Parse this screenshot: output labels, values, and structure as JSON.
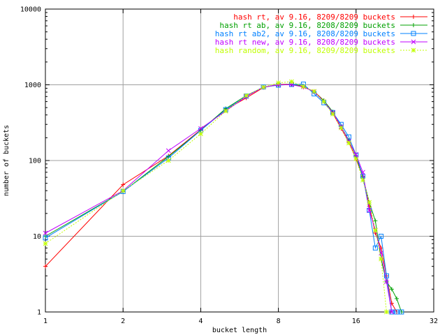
{
  "chart_data": {
    "type": "line",
    "xlabel": "bucket length",
    "ylabel": "number of buckets",
    "xscale": "log2",
    "yscale": "log10",
    "xlim": [
      1,
      32
    ],
    "ylim": [
      1,
      10000
    ],
    "xticks": [
      1,
      2,
      4,
      8,
      16,
      32
    ],
    "yticks": [
      1,
      10,
      100,
      1000,
      10000
    ],
    "grid": true,
    "legend_position": "top-right",
    "series": [
      {
        "name": "hash rt, av 9.16, 8209/8209 buckets",
        "color": "#ff0000",
        "marker": "plus",
        "dash": "solid",
        "points": [
          [
            1,
            4
          ],
          [
            2,
            48
          ],
          [
            3,
            115
          ],
          [
            4,
            255
          ],
          [
            5,
            470
          ],
          [
            6,
            670
          ],
          [
            7,
            920
          ],
          [
            8,
            1010
          ],
          [
            9,
            1020
          ],
          [
            10,
            930
          ],
          [
            11,
            820
          ],
          [
            12,
            620
          ],
          [
            13,
            420
          ],
          [
            14,
            265
          ],
          [
            15,
            175
          ],
          [
            16,
            105
          ],
          [
            17,
            62
          ],
          [
            18,
            25
          ],
          [
            19,
            11
          ],
          [
            20,
            7
          ],
          [
            21,
            3
          ],
          [
            22,
            1.3
          ],
          [
            23,
            1
          ]
        ]
      },
      {
        "name": "hash rt ab, av 9.16, 8208/8209 buckets",
        "color": "#00a000",
        "marker": "plus",
        "dash": "solid",
        "points": [
          [
            1,
            10
          ],
          [
            2,
            39
          ],
          [
            3,
            113
          ],
          [
            4,
            250
          ],
          [
            5,
            485
          ],
          [
            6,
            720
          ],
          [
            7,
            930
          ],
          [
            8,
            1000
          ],
          [
            9,
            1010
          ],
          [
            10,
            960
          ],
          [
            11,
            800
          ],
          [
            12,
            620
          ],
          [
            13,
            440
          ],
          [
            14,
            280
          ],
          [
            15,
            185
          ],
          [
            16,
            115
          ],
          [
            17,
            60
          ],
          [
            18,
            28
          ],
          [
            19,
            16
          ],
          [
            20,
            5
          ],
          [
            21,
            2.5
          ],
          [
            22,
            2
          ],
          [
            23,
            1.5
          ],
          [
            24,
            1
          ]
        ]
      },
      {
        "name": "hash rt ab2, av 9.16, 8208/8209 buckets",
        "color": "#0080ff",
        "marker": "square",
        "dash": "solid",
        "points": [
          [
            1,
            9.5
          ],
          [
            2,
            39
          ],
          [
            3,
            108
          ],
          [
            4,
            250
          ],
          [
            5,
            470
          ],
          [
            6,
            710
          ],
          [
            7,
            935
          ],
          [
            8,
            990
          ],
          [
            9,
            1010
          ],
          [
            10,
            1020
          ],
          [
            11,
            760
          ],
          [
            12,
            580
          ],
          [
            13,
            430
          ],
          [
            14,
            300
          ],
          [
            15,
            205
          ],
          [
            16,
            118
          ],
          [
            17,
            62
          ],
          [
            18,
            22
          ],
          [
            19,
            7
          ],
          [
            20,
            10
          ],
          [
            21,
            3
          ],
          [
            22,
            1
          ],
          [
            23,
            1
          ],
          [
            24,
            1
          ]
        ]
      },
      {
        "name": "hash rt new, av 9.16, 8208/8209 buckets",
        "color": "#c000ff",
        "marker": "cross",
        "dash": "solid",
        "points": [
          [
            1,
            11
          ],
          [
            2,
            40
          ],
          [
            3,
            135
          ],
          [
            4,
            265
          ],
          [
            5,
            450
          ],
          [
            6,
            700
          ],
          [
            7,
            930
          ],
          [
            8,
            1000
          ],
          [
            9,
            1000
          ],
          [
            10,
            940
          ],
          [
            11,
            810
          ],
          [
            12,
            600
          ],
          [
            13,
            430
          ],
          [
            14,
            280
          ],
          [
            15,
            180
          ],
          [
            16,
            120
          ],
          [
            17,
            70
          ],
          [
            18,
            22
          ],
          [
            19,
            12
          ],
          [
            20,
            6
          ],
          [
            21,
            2.5
          ],
          [
            22,
            1
          ]
        ]
      },
      {
        "name": "hash random, av 9.16, 8209/8209 buckets",
        "color": "#c0ff00",
        "marker": "star",
        "dash": "dotted",
        "points": [
          [
            1,
            8
          ],
          [
            2,
            40
          ],
          [
            3,
            100
          ],
          [
            4,
            225
          ],
          [
            5,
            450
          ],
          [
            6,
            720
          ],
          [
            7,
            930
          ],
          [
            8,
            1060
          ],
          [
            9,
            1100
          ],
          [
            10,
            950
          ],
          [
            11,
            820
          ],
          [
            12,
            600
          ],
          [
            13,
            410
          ],
          [
            14,
            270
          ],
          [
            15,
            170
          ],
          [
            16,
            105
          ],
          [
            17,
            55
          ],
          [
            18,
            28
          ],
          [
            19,
            12
          ],
          [
            20,
            5
          ],
          [
            21,
            1
          ]
        ]
      }
    ]
  }
}
